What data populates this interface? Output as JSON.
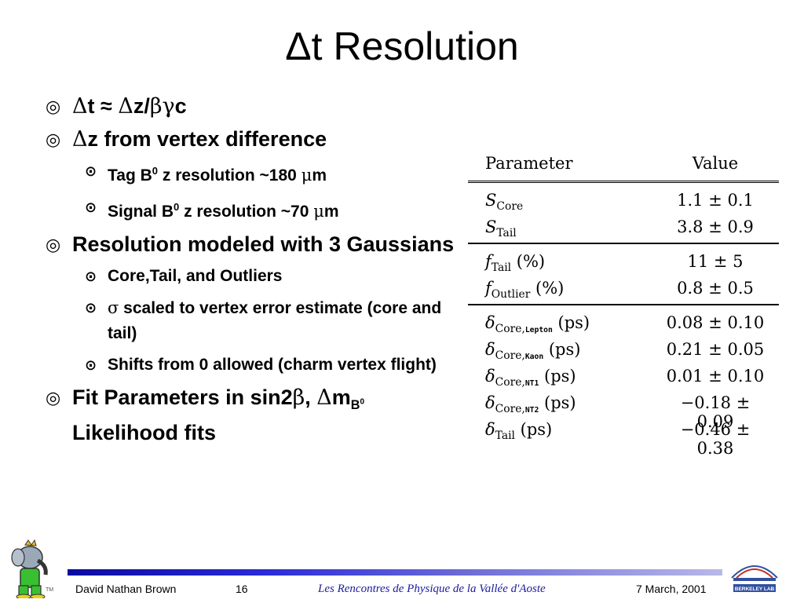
{
  "title": "Δt Resolution",
  "bullets": {
    "b1": {
      "mark": "◎",
      "text_a": "Δ",
      "text_b": "t ≈ ",
      "text_c": "Δ",
      "text_d": "z/",
      "text_e": "βγ",
      "text_f": "c"
    },
    "b2": {
      "mark": "◎",
      "sym": "Δ",
      "text": "z from vertex difference"
    },
    "b2_1": {
      "mark": "⊙",
      "pre": "Tag B",
      "sup": "0",
      "mid": " z resolution ~180 ",
      "mu": "μ",
      "post": "m"
    },
    "b2_2": {
      "mark": "⊙",
      "pre": "Signal B",
      "sup": "0",
      "mid": " z resolution ~70 ",
      "mu": "μ",
      "post": "m"
    },
    "b3": {
      "mark": "◎",
      "text": "Resolution modeled with 3 Gaussians"
    },
    "b3_1": {
      "mark": "⊙",
      "text": "Core,Tail, and Outliers"
    },
    "b3_2": {
      "mark": "⊙",
      "sym": "σ",
      "text": " scaled to vertex error estimate (core and tail)"
    },
    "b3_3": {
      "mark": "⊙",
      "text": "Shifts from 0 allowed (charm vertex flight)"
    },
    "b4": {
      "mark": "◎",
      "pre": "Fit Parameters in sin2",
      "beta": "β",
      "mid": ", ",
      "delta": "Δ",
      "m": "m",
      "sub": "B",
      "subsup": "0",
      "post": " Likelihood fits"
    }
  },
  "table": {
    "headers": {
      "parameter": "Parameter",
      "value": "Value"
    },
    "rows": {
      "s_core": {
        "sym": "S",
        "sub": "Core",
        "unit": "",
        "value": "1.1 ± 0.1"
      },
      "s_tail": {
        "sym": "S",
        "sub": "Tail",
        "unit": "",
        "value": "3.8 ± 0.9"
      },
      "f_tail": {
        "sym": "f",
        "sub": "Tail",
        "unit": " (%)",
        "value": "11 ± 5"
      },
      "f_outlier": {
        "sym": "f",
        "sub": "Outlier",
        "unit": " (%)",
        "value": "0.8 ± 0.5"
      },
      "d_lepton": {
        "sym": "δ",
        "sub": "Core,",
        "sub2": "Lepton",
        "unit": " (ps)",
        "value": "0.08 ± 0.10"
      },
      "d_kaon": {
        "sym": "δ",
        "sub": "Core,",
        "sub2": "Kaon",
        "unit": " (ps)",
        "value": "0.21 ± 0.05"
      },
      "d_nt1": {
        "sym": "δ",
        "sub": "Core,",
        "sub2": "NT1",
        "unit": " (ps)",
        "value": "0.01 ± 0.10"
      },
      "d_nt2": {
        "sym": "δ",
        "sub": "Core,",
        "sub2": "NT2",
        "unit": " (ps)",
        "value": "−0.18 ± 0.09"
      },
      "d_tail": {
        "sym": "δ",
        "sub": "Tail",
        "unit": " (ps)",
        "value": "−0.46 ± 0.38"
      }
    }
  },
  "footer": {
    "author": "David Nathan Brown",
    "page": "16",
    "conference": "Les Rencontres de Physique de la Vallée d'Aoste",
    "date": "7 March, 2001",
    "tm": "TM"
  },
  "logos": {
    "left": "babar-elephant-logo",
    "right": "berkeley-lab-logo",
    "right_text": "BERKELEY LAB"
  },
  "colors": {
    "footer_bar_start": "#0a0aa0",
    "footer_bar_end": "#b8b8e8",
    "conference_text": "#1a1aa0"
  }
}
